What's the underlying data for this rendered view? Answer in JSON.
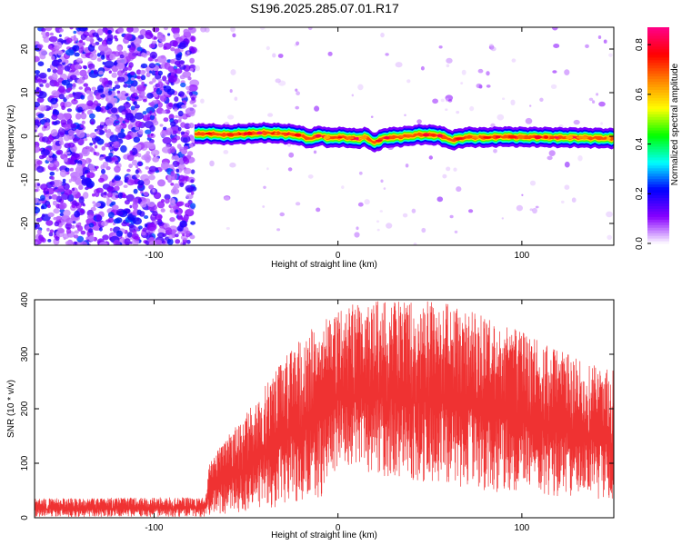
{
  "page_title": "S196.2025.285.07.01.R17",
  "chart_data": [
    {
      "type": "heatmap",
      "name": "spectrogram",
      "title": "S196.2025.285.07.01.R17",
      "xlabel": "Height of straight line (km)",
      "ylabel": "Frequency (Hz)",
      "xlim": [
        -165,
        150
      ],
      "ylim": [
        -25,
        25
      ],
      "xticks": [
        -100,
        0,
        100
      ],
      "yticks": [
        -20,
        -10,
        0,
        10,
        20
      ],
      "colorbar": {
        "label": "Normalized spectral amplitude",
        "range": [
          0,
          0.87
        ],
        "ticks": [
          0.0,
          0.2,
          0.4,
          0.6,
          0.8
        ],
        "colormap": [
          "#ffffff",
          "#8800ff",
          "#0000ff",
          "#00ffff",
          "#00ff00",
          "#ffff00",
          "#ff8800",
          "#ff0000",
          "#ff0088"
        ]
      },
      "noise_regions": [
        {
          "x_range": [
            -165,
            -78
          ],
          "density": "high",
          "amplitude": [
            0.05,
            0.25
          ]
        },
        {
          "x_range": [
            -78,
            150
          ],
          "density": "low",
          "amplitude": [
            0.02,
            0.12
          ]
        }
      ],
      "signal_track": {
        "x_range": [
          -78,
          150
        ],
        "peak_amplitude": 0.85,
        "center_freq_hz": [
          [
            -78,
            0.5
          ],
          [
            -70,
            0.6
          ],
          [
            -60,
            0.3
          ],
          [
            -50,
            0.6
          ],
          [
            -40,
            0.8
          ],
          [
            -30,
            0.6
          ],
          [
            -22,
            0.3
          ],
          [
            -15,
            -0.6
          ],
          [
            -10,
            0.2
          ],
          [
            -5,
            -0.4
          ],
          [
            0,
            -0.2
          ],
          [
            5,
            -0.3
          ],
          [
            10,
            -0.6
          ],
          [
            15,
            -0.2
          ],
          [
            20,
            -1.5
          ],
          [
            25,
            -0.4
          ],
          [
            35,
            -0.1
          ],
          [
            45,
            0.4
          ],
          [
            55,
            0.2
          ],
          [
            62,
            -0.9
          ],
          [
            70,
            -0.2
          ],
          [
            80,
            -0.3
          ],
          [
            90,
            -0.1
          ],
          [
            100,
            -0.2
          ],
          [
            110,
            -0.2
          ],
          [
            120,
            -0.3
          ],
          [
            130,
            -0.3
          ],
          [
            140,
            -0.4
          ],
          [
            150,
            -0.5
          ]
        ]
      }
    },
    {
      "type": "line",
      "name": "snr",
      "xlabel": "Height of straight line (km)",
      "ylabel": "SNR (10 * v/v)",
      "xlim": [
        -165,
        150
      ],
      "ylim": [
        0,
        400
      ],
      "xticks": [
        -100,
        0,
        100
      ],
      "yticks": [
        0,
        100,
        200,
        300,
        400
      ],
      "color": "#ef3232",
      "envelope": [
        {
          "x": -165,
          "low": 2,
          "high": 35
        },
        {
          "x": -72,
          "low": 2,
          "high": 38
        },
        {
          "x": -70,
          "low": 5,
          "high": 100
        },
        {
          "x": -60,
          "low": 8,
          "high": 150
        },
        {
          "x": -50,
          "low": 10,
          "high": 190
        },
        {
          "x": -40,
          "low": 15,
          "high": 240
        },
        {
          "x": -30,
          "low": 20,
          "high": 290
        },
        {
          "x": -20,
          "low": 25,
          "high": 330
        },
        {
          "x": -10,
          "low": 30,
          "high": 360
        },
        {
          "x": -5,
          "low": 50,
          "high": 370
        },
        {
          "x": 0,
          "low": 90,
          "high": 380
        },
        {
          "x": 10,
          "low": 90,
          "high": 395
        },
        {
          "x": 30,
          "low": 70,
          "high": 400
        },
        {
          "x": 60,
          "low": 60,
          "high": 395
        },
        {
          "x": 80,
          "low": 50,
          "high": 370
        },
        {
          "x": 100,
          "low": 40,
          "high": 340
        },
        {
          "x": 120,
          "low": 40,
          "high": 310
        },
        {
          "x": 140,
          "low": 35,
          "high": 280
        },
        {
          "x": 150,
          "low": 35,
          "high": 270
        }
      ]
    }
  ]
}
